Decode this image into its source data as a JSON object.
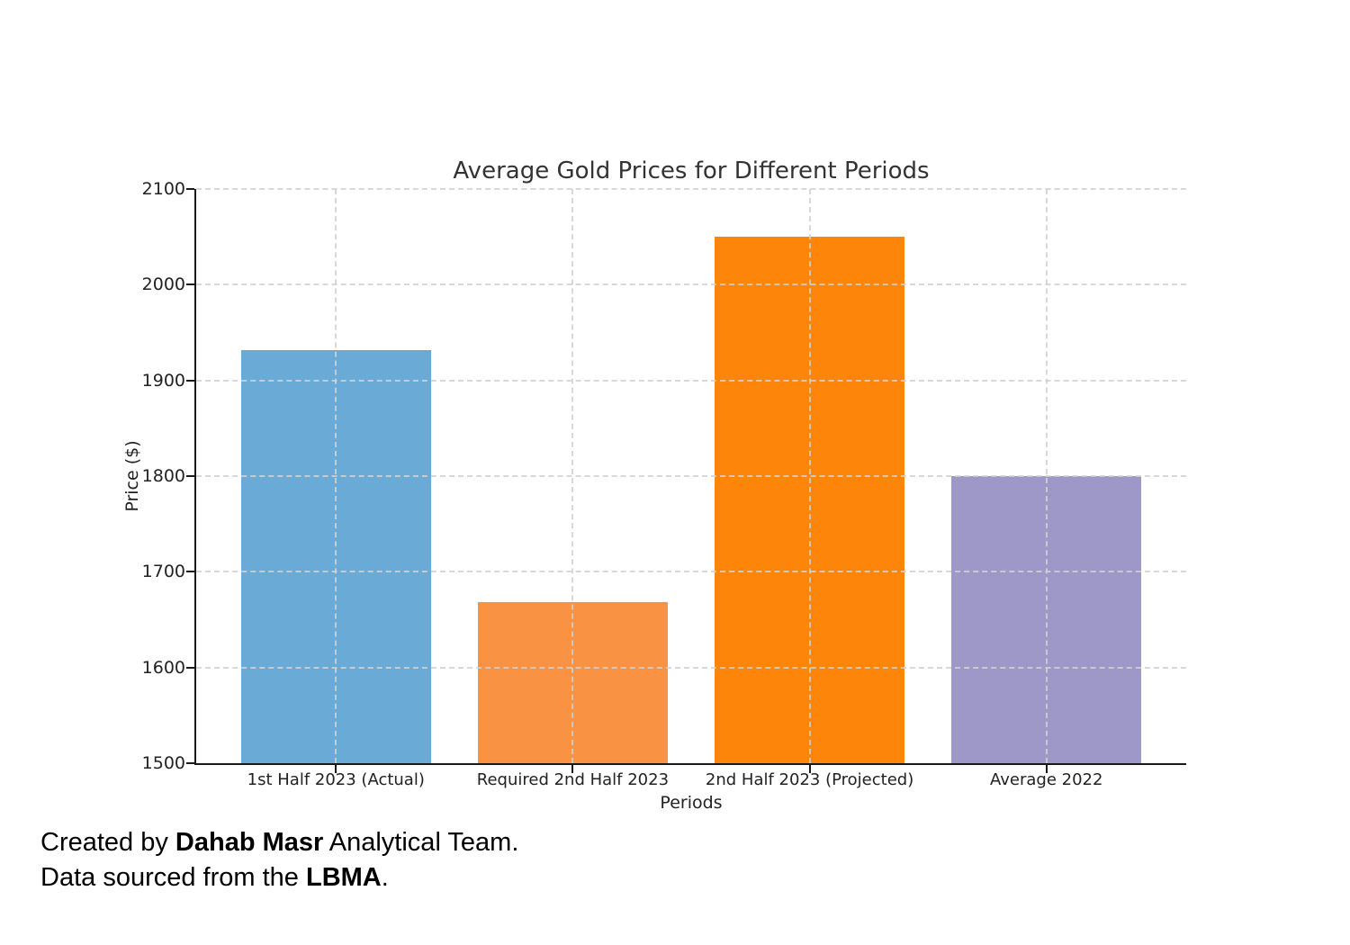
{
  "chart_data": {
    "type": "bar",
    "title": "Average Gold Prices for Different Periods",
    "xlabel": "Periods",
    "ylabel": "Price ($)",
    "categories": [
      "1st Half 2023 (Actual)",
      "Required 2nd Half 2023",
      "2nd Half 2023 (Projected)",
      "Average 2022"
    ],
    "values": [
      1932,
      1668,
      2050,
      1800
    ],
    "colors": [
      "#69aad7",
      "#fa9244",
      "#fd850a",
      "#9e98c8"
    ],
    "ylim": [
      1500,
      2100
    ],
    "yticks": [
      1500,
      1600,
      1700,
      1800,
      1900,
      2000,
      2100
    ],
    "grid": "dashed-both-axes-over-bars",
    "legend": "none"
  },
  "style": {
    "background": "#ffffff",
    "grid_color": "#d2d2d2",
    "axis_color": "#1a1a1a",
    "title_color": "#333333",
    "tick_color": "#222222"
  },
  "footer": {
    "line1": {
      "prefix": "Created by ",
      "bold": "Dahab Masr",
      "suffix": " Analytical Team."
    },
    "line2": {
      "prefix": "Data sourced from the ",
      "bold": "LBMA",
      "suffix": "."
    }
  }
}
